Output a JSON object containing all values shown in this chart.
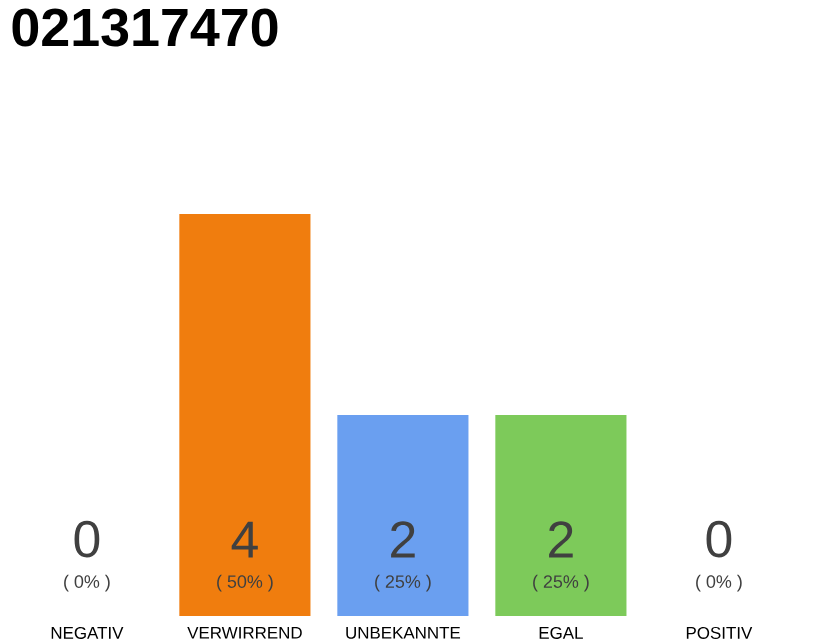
{
  "chart_data": {
    "type": "bar",
    "title": "021317470",
    "categories": [
      "NEGATIV",
      "VERWIRREND",
      "UNBEKANNTE",
      "EGAL",
      "POSITIV"
    ],
    "values": [
      0,
      4,
      2,
      2,
      0
    ],
    "colors": [
      "#eeeeee",
      "#f07d0e",
      "#6a9ff0",
      "#7dca5a",
      "#eeeeee"
    ],
    "data_labels": true,
    "annotations": [
      {
        "text": "( 0% )",
        "x": "NEGATIV",
        "y": 0
      },
      {
        "text": "( 50% )",
        "x": "VERWIRREND",
        "y": 0
      },
      {
        "text": "( 25% )",
        "x": "UNBEKANNTE",
        "y": 0
      },
      {
        "text": "( 25% )",
        "x": "EGAL",
        "y": 0
      },
      {
        "text": "( 0% )",
        "x": "POSITIV",
        "y": 0
      }
    ]
  }
}
